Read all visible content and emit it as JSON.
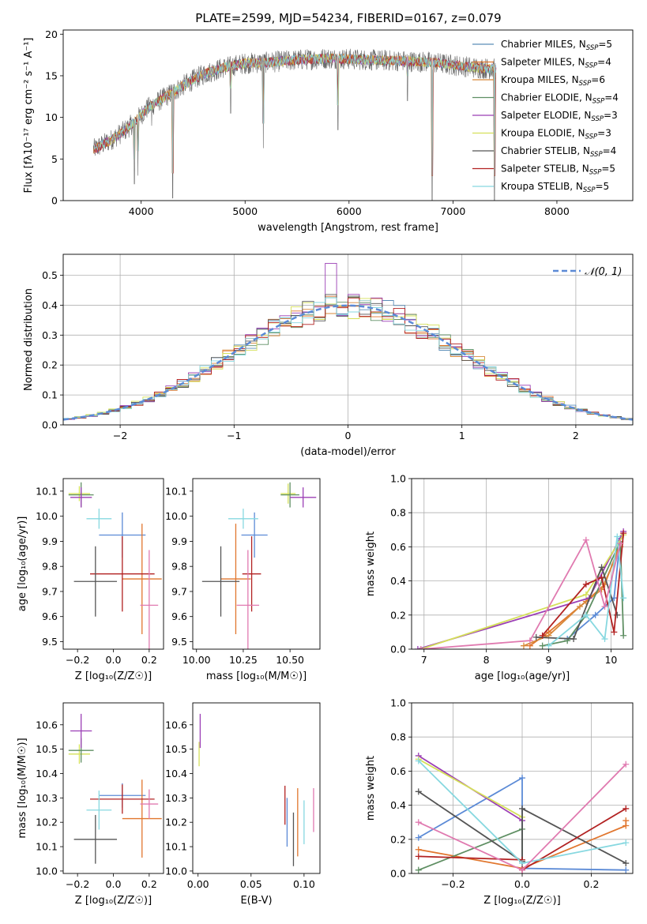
{
  "figure": {
    "title": "PLATE=2599, MJD=54234, FIBERID=0167, z=0.079"
  },
  "legend_entries": [
    {
      "label": "Chabrier MILES, N",
      "sub": "SSP",
      "suffix": "=5",
      "color": "#5b8db8"
    },
    {
      "label": "Salpeter MILES, N",
      "sub": "SSP",
      "suffix": "=4",
      "color": "#e1762e"
    },
    {
      "label": "Kroupa MILES, N",
      "sub": "SSP",
      "suffix": "=6",
      "color": "#d8893a"
    },
    {
      "label": "Chabrier ELODIE, N",
      "sub": "SSP",
      "suffix": "=4",
      "color": "#5f8f63"
    },
    {
      "label": "Salpeter ELODIE, N",
      "sub": "SSP",
      "suffix": "=3",
      "color": "#9b3fb5"
    },
    {
      "label": "Kroupa ELODIE, N",
      "sub": "SSP",
      "suffix": "=3",
      "color": "#d5e05a"
    },
    {
      "label": "Chabrier STELIB, N",
      "sub": "SSP",
      "suffix": "=4",
      "color": "#555555"
    },
    {
      "label": "Salpeter STELIB, N",
      "sub": "SSP",
      "suffix": "=5",
      "color": "#b22222"
    },
    {
      "label": "Kroupa STELIB, N",
      "sub": "SSP",
      "suffix": "=5",
      "color": "#87d8e0"
    }
  ],
  "chart_data": [
    {
      "id": "spectrum",
      "type": "line",
      "xlabel": "wavelength [Angstrom, rest frame]",
      "ylabel": "Flux [fλ10⁻¹⁷ erg cm⁻² s⁻¹ A⁻¹]",
      "xlim": [
        3250,
        8730
      ],
      "ylim": [
        0,
        20.5
      ],
      "xticks": [
        4000,
        5000,
        6000,
        7000,
        8000
      ],
      "yticks": [
        0,
        5,
        10,
        15,
        20
      ],
      "continuum": {
        "x": [
          3550,
          3700,
          3850,
          3950,
          4050,
          4200,
          4400,
          4600,
          4800,
          5000,
          5200,
          5500,
          5800,
          6000,
          6200,
          6500,
          6800,
          7000,
          7200,
          7420
        ],
        "y": [
          6.2,
          7.2,
          8.5,
          9.6,
          11.0,
          12.2,
          13.8,
          15.2,
          16.0,
          16.5,
          16.6,
          16.9,
          17.1,
          17.0,
          16.9,
          16.8,
          16.6,
          16.3,
          16.0,
          15.8
        ]
      },
      "absorption_lines": [
        {
          "x": 3934,
          "y": 2.0
        },
        {
          "x": 3969,
          "y": 3.0
        },
        {
          "x": 4101,
          "y": 9.0
        },
        {
          "x": 4304,
          "y": 0.3
        },
        {
          "x": 4861,
          "y": 10.5
        },
        {
          "x": 5175,
          "y": 6.3
        },
        {
          "x": 5893,
          "y": 8.5
        },
        {
          "x": 6563,
          "y": 12.0
        },
        {
          "x": 6800,
          "y": 0.0
        },
        {
          "x": 7400,
          "y": 0.0
        }
      ]
    },
    {
      "id": "residuals",
      "type": "histogram",
      "xlabel": "(data-model)/error",
      "ylabel": "Normed distribution",
      "xlim": [
        -2.5,
        2.5
      ],
      "ylim": [
        0,
        0.57
      ],
      "xticks": [
        -2,
        -1,
        0,
        1,
        2
      ],
      "yticks": [
        0.0,
        0.1,
        0.2,
        0.3,
        0.4,
        0.5
      ],
      "grid": true,
      "bin_width": 0.1,
      "normal_label": "𝒩(0, 1)",
      "normal_color": "#5b8ad6"
    },
    {
      "id": "age-vs-Z",
      "type": "errorbar",
      "xlabel": "Z [log₁₀(Z/Z☉)]",
      "ylabel": "age  [log₁₀(age/yr)]",
      "xlim": [
        -0.28,
        0.28
      ],
      "ylim": [
        9.47,
        10.15
      ],
      "xticks": [
        -0.2,
        0.0,
        0.2
      ],
      "yticks": [
        9.5,
        9.6,
        9.7,
        9.8,
        9.9,
        10.0,
        10.1
      ],
      "points": [
        {
          "x": 0.05,
          "y": 9.925,
          "xerr": 0.13,
          "yerr": 0.09,
          "color": "#5b8ad6"
        },
        {
          "x": 0.16,
          "y": 9.75,
          "xerr": 0.11,
          "yerr": 0.22,
          "color": "#e1762e"
        },
        {
          "x": 0.05,
          "y": 9.77,
          "xerr": 0.18,
          "yerr": 0.15,
          "color": "#b22222"
        },
        {
          "x": 0.2,
          "y": 9.645,
          "xerr": 0.05,
          "yerr": 0.22,
          "color": "#e07ab0"
        },
        {
          "x": -0.08,
          "y": 9.99,
          "xerr": 0.07,
          "yerr": 0.04,
          "color": "#87d8e0"
        },
        {
          "x": -0.1,
          "y": 9.74,
          "xerr": 0.12,
          "yerr": 0.14,
          "color": "#555555"
        },
        {
          "x": -0.19,
          "y": 10.09,
          "xerr": 0.06,
          "yerr": 0.03,
          "color": "#d5e05a"
        },
        {
          "x": -0.18,
          "y": 10.085,
          "xerr": 0.07,
          "yerr": 0.05,
          "color": "#5f8f63"
        },
        {
          "x": -0.18,
          "y": 10.075,
          "xerr": 0.06,
          "yerr": 0.04,
          "color": "#9b3fb5"
        }
      ]
    },
    {
      "id": "age-vs-mass",
      "type": "errorbar",
      "xlabel": "mass [log₁₀(M/M☉)]",
      "ylabel": "",
      "xlim": [
        9.98,
        10.66
      ],
      "ylim": [
        9.47,
        10.15
      ],
      "xticks": [
        10.0,
        10.25,
        10.5
      ],
      "xtick_labels": [
        "10.00",
        "10.25",
        "10.50"
      ],
      "yticks": [
        9.5,
        9.6,
        9.7,
        9.8,
        9.9,
        10.0,
        10.1
      ],
      "points": [
        {
          "x": 10.31,
          "y": 9.925,
          "xerr": 0.07,
          "yerr": 0.09,
          "color": "#5b8ad6"
        },
        {
          "x": 10.21,
          "y": 9.75,
          "xerr": 0.08,
          "yerr": 0.22,
          "color": "#e1762e"
        },
        {
          "x": 10.295,
          "y": 9.77,
          "xerr": 0.05,
          "yerr": 0.15,
          "color": "#b22222"
        },
        {
          "x": 10.275,
          "y": 9.645,
          "xerr": 0.06,
          "yerr": 0.22,
          "color": "#e07ab0"
        },
        {
          "x": 10.25,
          "y": 9.99,
          "xerr": 0.08,
          "yerr": 0.04,
          "color": "#87d8e0"
        },
        {
          "x": 10.13,
          "y": 9.74,
          "xerr": 0.1,
          "yerr": 0.14,
          "color": "#555555"
        },
        {
          "x": 10.49,
          "y": 10.09,
          "xerr": 0.04,
          "yerr": 0.04,
          "color": "#d5e05a"
        },
        {
          "x": 10.5,
          "y": 10.085,
          "xerr": 0.05,
          "yerr": 0.05,
          "color": "#5f8f63"
        },
        {
          "x": 10.57,
          "y": 10.075,
          "xerr": 0.07,
          "yerr": 0.04,
          "color": "#9b3fb5"
        }
      ]
    },
    {
      "id": "weight-vs-age",
      "type": "line",
      "xlabel": "age  [log₁₀(age/yr)]",
      "ylabel": "mass weight",
      "xlim": [
        6.8,
        10.35
      ],
      "ylim": [
        0,
        1.0
      ],
      "xticks": [
        7,
        8,
        9,
        10
      ],
      "yticks": [
        0.0,
        0.2,
        0.4,
        0.6,
        0.8,
        1.0
      ],
      "grid": true,
      "series": [
        {
          "color": "#5b8ad6",
          "x": [
            9.3,
            9.75,
            10.05,
            10.15
          ],
          "y": [
            0.06,
            0.2,
            0.3,
            0.65
          ]
        },
        {
          "color": "#e1762e",
          "x": [
            8.7,
            9.0,
            9.6,
            9.9,
            10.15
          ],
          "y": [
            0.02,
            0.1,
            0.28,
            0.38,
            0.62
          ]
        },
        {
          "color": "#d8893a",
          "x": [
            8.6,
            9.0,
            9.5,
            9.85,
            10.15
          ],
          "y": [
            0.02,
            0.08,
            0.25,
            0.35,
            0.6
          ]
        },
        {
          "color": "#5f8f63",
          "x": [
            8.9,
            9.3,
            9.6,
            10.15,
            10.2
          ],
          "y": [
            0.02,
            0.05,
            0.2,
            0.63,
            0.08
          ]
        },
        {
          "color": "#9b3fb5",
          "x": [
            6.9,
            9.65,
            10.2
          ],
          "y": [
            0.0,
            0.3,
            0.69
          ]
        },
        {
          "color": "#d5e05a",
          "x": [
            6.95,
            9.6,
            10.2
          ],
          "y": [
            0.0,
            0.32,
            0.67
          ]
        },
        {
          "color": "#555555",
          "x": [
            8.8,
            9.4,
            9.85,
            10.1
          ],
          "y": [
            0.07,
            0.06,
            0.48,
            0.2
          ]
        },
        {
          "color": "#b22222",
          "x": [
            8.9,
            9.6,
            9.85,
            10.05,
            10.2
          ],
          "y": [
            0.08,
            0.38,
            0.42,
            0.1,
            0.68
          ]
        },
        {
          "color": "#87d8e0",
          "x": [
            9.0,
            9.6,
            9.9,
            10.1,
            10.2
          ],
          "y": [
            0.02,
            0.2,
            0.06,
            0.66,
            0.3
          ]
        },
        {
          "color": "#e07ab0",
          "x": [
            6.95,
            8.7,
            9.6,
            9.9,
            10.15
          ],
          "y": [
            0.0,
            0.05,
            0.64,
            0.25,
            0.62
          ]
        }
      ]
    },
    {
      "id": "mass-vs-Z",
      "type": "errorbar",
      "xlabel": "Z [log₁₀(Z/Z☉)]",
      "ylabel": "mass [log₁₀(M/M☉)]",
      "xlim": [
        -0.28,
        0.28
      ],
      "ylim": [
        9.99,
        10.69
      ],
      "xticks": [
        -0.2,
        0.0,
        0.2
      ],
      "yticks": [
        10.0,
        10.1,
        10.2,
        10.3,
        10.4,
        10.5,
        10.6
      ],
      "points": [
        {
          "x": 0.05,
          "y": 10.31,
          "xerr": 0.13,
          "yerr": 0.05,
          "color": "#5b8ad6"
        },
        {
          "x": 0.16,
          "y": 10.215,
          "xerr": 0.11,
          "yerr": 0.16,
          "color": "#e1762e"
        },
        {
          "x": 0.05,
          "y": 10.295,
          "xerr": 0.18,
          "yerr": 0.06,
          "color": "#b22222"
        },
        {
          "x": 0.2,
          "y": 10.275,
          "xerr": 0.05,
          "yerr": 0.06,
          "color": "#e07ab0"
        },
        {
          "x": -0.08,
          "y": 10.25,
          "xerr": 0.07,
          "yerr": 0.08,
          "color": "#87d8e0"
        },
        {
          "x": -0.1,
          "y": 10.13,
          "xerr": 0.12,
          "yerr": 0.1,
          "color": "#555555"
        },
        {
          "x": -0.19,
          "y": 10.48,
          "xerr": 0.06,
          "yerr": 0.04,
          "color": "#d5e05a"
        },
        {
          "x": -0.18,
          "y": 10.495,
          "xerr": 0.07,
          "yerr": 0.05,
          "color": "#5f8f63"
        },
        {
          "x": -0.18,
          "y": 10.575,
          "xerr": 0.06,
          "yerr": 0.07,
          "color": "#9b3fb5"
        }
      ]
    },
    {
      "id": "mass-vs-ebv",
      "type": "errorbar",
      "xlabel": "E(B-V)",
      "ylabel": "",
      "xlim": [
        -0.005,
        0.115
      ],
      "ylim": [
        9.99,
        10.69
      ],
      "xticks": [
        0.0,
        0.05,
        0.1
      ],
      "xtick_labels": [
        "0.00",
        "0.05",
        "0.10"
      ],
      "yticks": [
        10.0,
        10.1,
        10.2,
        10.3,
        10.4,
        10.5,
        10.6
      ],
      "points": [
        {
          "x": 0.001,
          "y": 10.48,
          "xerr": 0,
          "yerr": 0.05,
          "color": "#d5e05a"
        },
        {
          "x": 0.002,
          "y": 10.575,
          "xerr": 0,
          "yerr": 0.07,
          "color": "#9b3fb5"
        },
        {
          "x": 0.082,
          "y": 10.27,
          "xerr": 0,
          "yerr": 0.08,
          "color": "#b22222"
        },
        {
          "x": 0.084,
          "y": 10.2,
          "xerr": 0,
          "yerr": 0.1,
          "color": "#5b8ad6"
        },
        {
          "x": 0.09,
          "y": 10.13,
          "xerr": 0,
          "yerr": 0.11,
          "color": "#555555"
        },
        {
          "x": 0.094,
          "y": 10.2,
          "xerr": 0,
          "yerr": 0.14,
          "color": "#e1762e"
        },
        {
          "x": 0.1,
          "y": 10.2,
          "xerr": 0,
          "yerr": 0.09,
          "color": "#87d8e0"
        },
        {
          "x": 0.109,
          "y": 10.25,
          "xerr": 0,
          "yerr": 0.09,
          "color": "#e07ab0"
        }
      ]
    },
    {
      "id": "weight-vs-Z",
      "type": "line",
      "xlabel": "Z [log₁₀(Z/Z☉)]",
      "ylabel": "mass weight",
      "xlim": [
        -0.32,
        0.32
      ],
      "ylim": [
        0,
        1.0
      ],
      "xticks": [
        -0.2,
        0.0,
        0.2
      ],
      "yticks": [
        0.0,
        0.2,
        0.4,
        0.6,
        0.8,
        1.0
      ],
      "grid": true,
      "series": [
        {
          "color": "#5b8ad6",
          "x": [
            -0.3,
            0.0,
            0.0,
            0.3
          ],
          "y": [
            0.21,
            0.56,
            0.03,
            0.02
          ]
        },
        {
          "color": "#e1762e",
          "x": [
            -0.3,
            0.0,
            0.3,
            0.3
          ],
          "y": [
            0.14,
            0.03,
            0.28,
            0.31
          ]
        },
        {
          "color": "#5f8f63",
          "x": [
            -0.3,
            0.0,
            0.0
          ],
          "y": [
            0.02,
            0.26,
            0.07
          ]
        },
        {
          "color": "#9b3fb5",
          "x": [
            -0.3,
            0.0
          ],
          "y": [
            0.69,
            0.31
          ]
        },
        {
          "color": "#d5e05a",
          "x": [
            -0.3,
            0.0
          ],
          "y": [
            0.67,
            0.33
          ]
        },
        {
          "color": "#555555",
          "x": [
            -0.3,
            0.0,
            0.0,
            0.3
          ],
          "y": [
            0.48,
            0.07,
            0.38,
            0.06
          ]
        },
        {
          "color": "#b22222",
          "x": [
            -0.3,
            0.0,
            0.0,
            0.3
          ],
          "y": [
            0.1,
            0.08,
            0.02,
            0.38
          ]
        },
        {
          "color": "#87d8e0",
          "x": [
            -0.3,
            0.0,
            0.3
          ],
          "y": [
            0.66,
            0.06,
            0.18
          ]
        },
        {
          "color": "#e07ab0",
          "x": [
            -0.3,
            0.0,
            0.3
          ],
          "y": [
            0.3,
            0.02,
            0.64
          ]
        }
      ]
    }
  ]
}
